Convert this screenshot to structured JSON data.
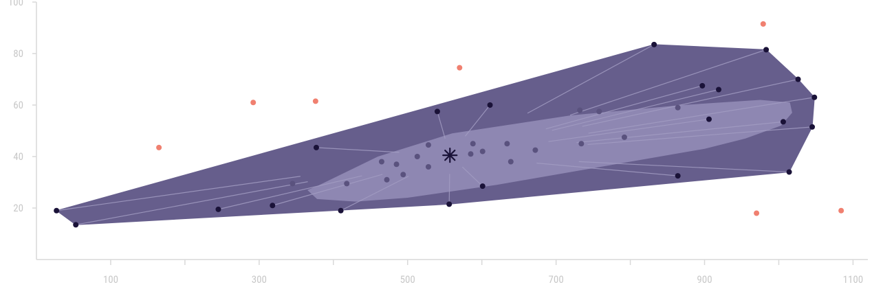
{
  "chart_data": {
    "type": "scatter",
    "title": "",
    "xlabel": "",
    "ylabel": "",
    "xlim": [
      0,
      1120
    ],
    "ylim": [
      0,
      100
    ],
    "x_ticks": [
      100,
      300,
      500,
      700,
      900,
      1100
    ],
    "y_ticks": [
      20,
      40,
      60,
      80,
      100
    ],
    "colors": {
      "axis": "#d9d9d9",
      "tick_text": "#c8c8c8",
      "outer_hull": "#665e8c",
      "inner_bag": "#8e87b2",
      "hull_points": "#1a1238",
      "bag_points": "#5a527e",
      "outliers": "#f08070",
      "spokes": "#a29cc2",
      "median": "#1a1238"
    },
    "median": [
      557,
      40.5
    ],
    "inner_bag": [
      [
        365,
        27
      ],
      [
        378,
        23.5
      ],
      [
        430,
        22.5
      ],
      [
        500,
        24
      ],
      [
        620,
        29
      ],
      [
        760,
        36
      ],
      [
        900,
        43
      ],
      [
        955,
        47
      ],
      [
        1003,
        52
      ],
      [
        1018,
        57
      ],
      [
        1015,
        61
      ],
      [
        975,
        62
      ],
      [
        870,
        60
      ],
      [
        720,
        56
      ],
      [
        560,
        49
      ],
      [
        460,
        40
      ],
      [
        410,
        33
      ],
      [
        378,
        28.5
      ]
    ],
    "hull_points": [
      [
        27,
        19
      ],
      [
        53,
        13.5
      ],
      [
        245,
        19.5
      ],
      [
        318,
        21
      ],
      [
        377,
        43.5
      ],
      [
        410,
        19
      ],
      [
        540,
        57.5
      ],
      [
        556,
        21.5
      ],
      [
        601,
        28.5
      ],
      [
        611,
        60
      ],
      [
        832,
        83.5
      ],
      [
        864,
        32.5
      ],
      [
        897,
        67.5
      ],
      [
        906,
        54.5
      ],
      [
        919,
        66
      ],
      [
        983,
        81.5
      ],
      [
        1006,
        53.5
      ],
      [
        1014,
        34
      ],
      [
        1026,
        70
      ],
      [
        1045,
        51.5
      ],
      [
        1048,
        63
      ]
    ],
    "outer_hull": [
      [
        27,
        19
      ],
      [
        832,
        83.5
      ],
      [
        983,
        81.5
      ],
      [
        1026,
        70
      ],
      [
        1048,
        63
      ],
      [
        1045,
        51.5
      ],
      [
        1014,
        34
      ],
      [
        556,
        21.5
      ],
      [
        53,
        13.5
      ]
    ],
    "bag_points": [
      [
        345,
        29.5
      ],
      [
        418,
        29.5
      ],
      [
        465,
        38
      ],
      [
        472,
        31
      ],
      [
        485,
        37
      ],
      [
        494,
        33
      ],
      [
        513,
        40
      ],
      [
        528,
        44.5
      ],
      [
        528,
        36
      ],
      [
        585,
        41
      ],
      [
        588,
        45
      ],
      [
        601,
        42
      ],
      [
        634,
        45
      ],
      [
        639,
        38
      ],
      [
        672,
        42.5
      ],
      [
        732,
        58
      ],
      [
        734,
        45
      ],
      [
        758,
        57.5
      ],
      [
        792,
        47.5
      ],
      [
        864,
        59
      ]
    ],
    "outliers": [
      [
        165,
        43.5
      ],
      [
        292,
        61
      ],
      [
        376,
        61.5
      ],
      [
        570,
        74.5
      ],
      [
        979,
        91.5
      ],
      [
        970,
        18
      ],
      [
        1084,
        19
      ]
    ]
  }
}
